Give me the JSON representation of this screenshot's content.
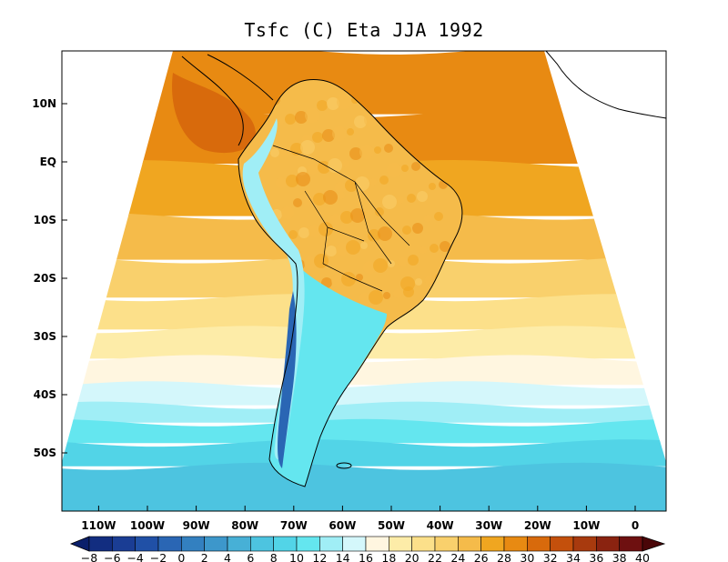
{
  "title": "Tsfc (C) Eta JJA 1992",
  "map": {
    "lat_ticks": [
      "10N",
      "EQ",
      "10S",
      "20S",
      "30S",
      "40S",
      "50S"
    ],
    "lon_ticks": [
      "110W",
      "100W",
      "90W",
      "80W",
      "70W",
      "60W",
      "50W",
      "40W",
      "30W",
      "20W",
      "10W",
      "0"
    ],
    "zonal_bands": [
      {
        "lat": 12,
        "temp": 29
      },
      {
        "lat": 5,
        "temp": 28
      },
      {
        "lat": -5,
        "temp": 27
      },
      {
        "lat": -13,
        "temp": 25
      },
      {
        "lat": -20,
        "temp": 23
      },
      {
        "lat": -26,
        "temp": 21
      },
      {
        "lat": -31,
        "temp": 19
      },
      {
        "lat": -36,
        "temp": 17
      },
      {
        "lat": -40,
        "temp": 15
      },
      {
        "lat": -43,
        "temp": 13
      },
      {
        "lat": -46,
        "temp": 11
      },
      {
        "lat": -50,
        "temp": 9
      },
      {
        "lat": -54,
        "temp": 7
      }
    ],
    "land_temp_tropics": 25,
    "andes_temp": 12,
    "patagonia_temp": 4
  },
  "colorbar": {
    "labels": [
      "−8",
      "−6",
      "−4",
      "−2",
      "0",
      "2",
      "4",
      "6",
      "8",
      "10",
      "12",
      "14",
      "16",
      "18",
      "20",
      "22",
      "24",
      "26",
      "28",
      "30",
      "32",
      "34",
      "36",
      "38",
      "40"
    ],
    "colors": [
      "#0a1f6b",
      "#122d80",
      "#1a3d94",
      "#2050a6",
      "#2a66b4",
      "#3380c0",
      "#3d97cb",
      "#47b0d6",
      "#4dc4e0",
      "#52d4e7",
      "#64e6ef",
      "#a0eef6",
      "#d4f7fb",
      "#fff6e0",
      "#fdeca8",
      "#fce08a",
      "#f9d06c",
      "#f5bb4a",
      "#f0a620",
      "#e88a12",
      "#d86a0c",
      "#c4500c",
      "#a83a0e",
      "#8a2310",
      "#6e1010",
      "#4a0608"
    ]
  }
}
